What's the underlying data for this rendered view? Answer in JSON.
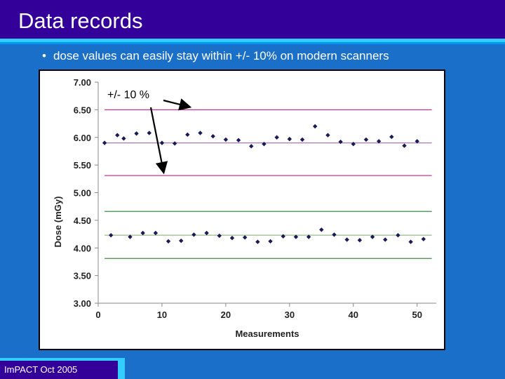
{
  "slide": {
    "title": "Data records",
    "bullet": "dose values can easily stay within +/- 10% on modern scanners",
    "footer": "ImPACT Oct 2005"
  },
  "colors": {
    "title_bar": "#330099",
    "background": "#1a6fc9",
    "limit_line": "#cc3399",
    "mean_line": "#aa77bb",
    "low_limit_line": "#448844",
    "low_mean_line": "#99bb88",
    "marker": "#1a1a55"
  },
  "chart_data": {
    "type": "scatter",
    "xlabel": "Measurements",
    "ylabel": "Dose (mGy)",
    "xlim": [
      0,
      53
    ],
    "ylim": [
      3.0,
      7.0
    ],
    "xticks": [
      0,
      10,
      20,
      30,
      40,
      50
    ],
    "yticks": [
      "3.00",
      "3.50",
      "4.00",
      "4.50",
      "5.00",
      "5.50",
      "6.00",
      "6.50",
      "7.00"
    ],
    "annotation": "+/- 10 %",
    "series": [
      {
        "x": [
          1,
          3,
          4,
          6,
          8,
          10,
          12,
          14,
          16,
          18,
          20,
          22,
          24,
          26,
          28,
          30,
          32,
          34,
          36,
          38,
          40,
          42,
          44,
          46,
          48,
          50
        ],
        "values": [
          5.9,
          6.04,
          5.98,
          6.07,
          6.08,
          5.9,
          5.89,
          6.05,
          6.08,
          6.02,
          5.96,
          5.95,
          5.84,
          5.88,
          6.0,
          5.97,
          5.96,
          6.2,
          6.04,
          5.92,
          5.88,
          5.96,
          5.93,
          6.01,
          5.85,
          5.93
        ]
      },
      {
        "x": [
          2,
          5,
          7,
          9,
          11,
          13,
          15,
          17,
          19,
          21,
          23,
          25,
          27,
          29,
          31,
          33,
          35,
          37,
          39,
          41,
          43,
          45,
          47,
          49,
          51
        ],
        "values": [
          4.23,
          4.2,
          4.27,
          4.27,
          4.12,
          4.13,
          4.24,
          4.27,
          4.22,
          4.18,
          4.19,
          4.11,
          4.12,
          4.21,
          4.2,
          4.2,
          4.33,
          4.24,
          4.15,
          4.14,
          4.2,
          4.15,
          4.23,
          4.11,
          4.16
        ]
      }
    ],
    "reference_lines": [
      {
        "y": 6.5
      },
      {
        "y": 5.9
      },
      {
        "y": 5.31
      },
      {
        "y": 4.66
      },
      {
        "y": 4.23
      },
      {
        "y": 3.81
      }
    ]
  }
}
